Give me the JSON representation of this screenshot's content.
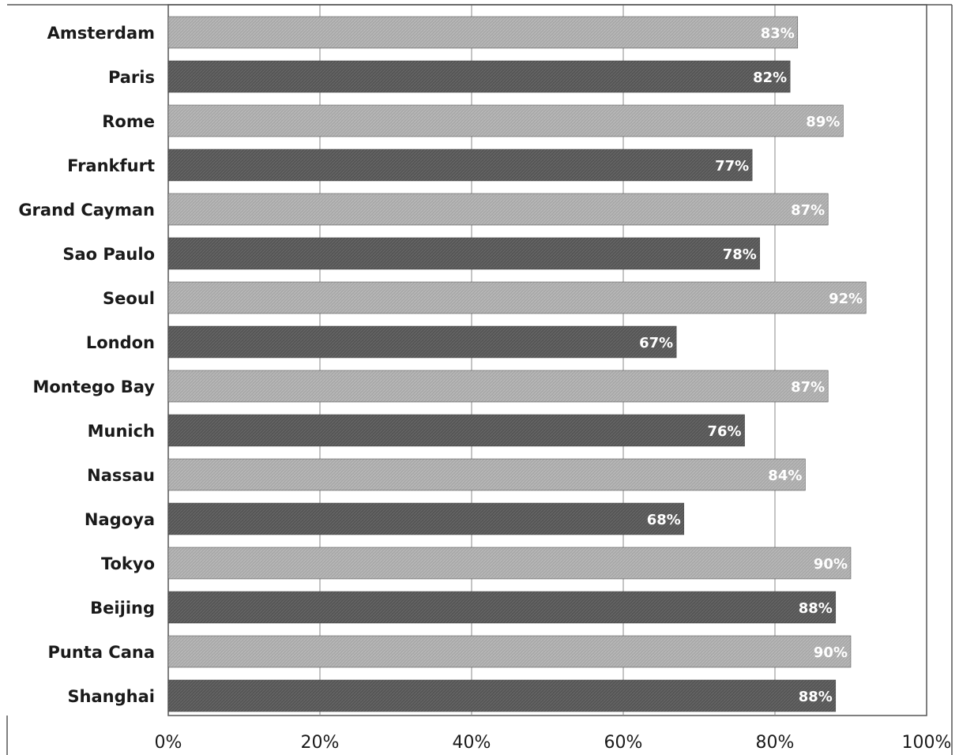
{
  "chart_data": {
    "type": "bar",
    "orientation": "horizontal",
    "categories": [
      "Amsterdam",
      "Paris",
      "Rome",
      "Frankfurt",
      "Grand Cayman",
      "Sao Paulo",
      "Seoul",
      "London",
      "Montego Bay",
      "Munich",
      "Nassau",
      "Nagoya",
      "Tokyo",
      "Beijing",
      "Punta Cana",
      "Shanghai"
    ],
    "values": [
      83,
      82,
      89,
      77,
      87,
      78,
      92,
      67,
      87,
      76,
      84,
      68,
      90,
      88,
      90,
      88
    ],
    "data_labels": [
      "83%",
      "82%",
      "89%",
      "77%",
      "87%",
      "78%",
      "92%",
      "67%",
      "87%",
      "76%",
      "84%",
      "68%",
      "90%",
      "88%",
      "90%",
      "88%"
    ],
    "xlim": [
      0,
      100
    ],
    "x_ticks": [
      0,
      20,
      40,
      60,
      80,
      100
    ],
    "x_tick_labels": [
      "0%",
      "20%",
      "40%",
      "60%",
      "80%",
      "100%"
    ],
    "grid": "vertical",
    "legend": "none",
    "colors": {
      "light": "#a8a8a8",
      "dark": "#555555"
    }
  }
}
